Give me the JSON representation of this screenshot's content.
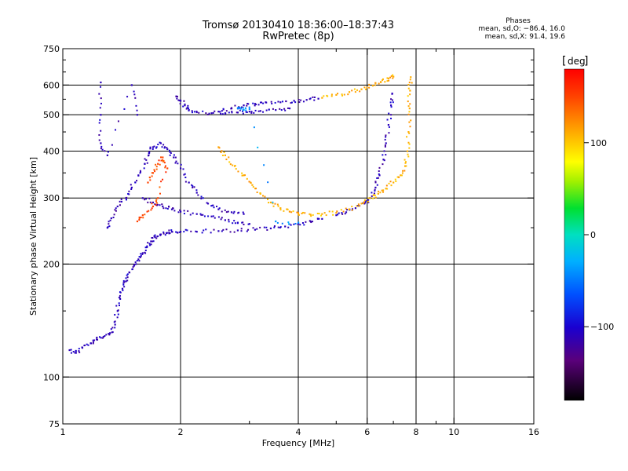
{
  "header": {
    "title": "Tromsø 20130410 18:36:00–18:37:43",
    "subtitle": "RwPretec (8p)"
  },
  "stats": {
    "title": "Phases",
    "line1": "mean, sd,O: −86.4, 16.0",
    "line2": "mean, sd,X:  91.4, 19.6"
  },
  "colorbar": {
    "label": "deg",
    "ticks": [
      {
        "value": 100,
        "label": "100"
      },
      {
        "value": 0,
        "label": "0"
      },
      {
        "value": -100,
        "label": "−100"
      }
    ],
    "range": [
      -180,
      180
    ]
  },
  "chart_data": {
    "type": "scatter",
    "xlabel": "Frequency [MHz]",
    "ylabel": "Stationary phase Virtual Height [km]",
    "xscale": "log",
    "yscale": "log",
    "xlim": [
      1,
      16
    ],
    "ylim": [
      75,
      750
    ],
    "xticks": [
      1,
      2,
      4,
      6,
      8,
      10,
      16
    ],
    "xtick_labels": [
      "1",
      "2",
      "4",
      "6",
      "8",
      "10",
      "16"
    ],
    "yticks": [
      75,
      100,
      200,
      300,
      400,
      500,
      600,
      750
    ],
    "ytick_labels": [
      "75",
      "100",
      "200",
      "300",
      "400",
      "500",
      "600",
      "750"
    ],
    "grid_x": [
      2,
      4,
      6,
      8,
      10
    ],
    "grid_y": [
      100,
      200,
      300,
      400,
      500,
      600
    ],
    "minor_xticks": [
      3,
      5,
      7,
      9
    ],
    "minor_yticks": [
      150,
      250,
      350,
      450,
      550,
      650,
      700
    ],
    "series": [
      {
        "color_value": -110,
        "traces": [
          {
            "points": [
              [
                1.04,
                118
              ],
              [
                1.08,
                116
              ],
              [
                1.12,
                120
              ],
              [
                1.18,
                123
              ],
              [
                1.22,
                126
              ],
              [
                1.27,
                128
              ],
              [
                1.32,
                131
              ],
              [
                1.36,
                138
              ],
              [
                1.38,
                150
              ],
              [
                1.4,
                162
              ],
              [
                1.42,
                172
              ],
              [
                1.45,
                180
              ],
              [
                1.48,
                190
              ],
              [
                1.52,
                198
              ],
              [
                1.56,
                206
              ],
              [
                1.6,
                214
              ],
              [
                1.64,
                222
              ],
              [
                1.68,
                230
              ],
              [
                1.72,
                236
              ],
              [
                1.78,
                240
              ],
              [
                1.84,
                242
              ],
              [
                1.9,
                244
              ],
              [
                2.0,
                244
              ],
              [
                2.2,
                244
              ],
              [
                2.5,
                245
              ],
              [
                2.8,
                246
              ],
              [
                3.1,
                247
              ],
              [
                3.4,
                249
              ],
              [
                3.7,
                252
              ],
              [
                4.0,
                256
              ],
              [
                4.3,
                260
              ],
              [
                4.6,
                264
              ]
            ]
          },
          {
            "points": [
              [
                1.3,
                250
              ],
              [
                1.33,
                265
              ],
              [
                1.38,
                285
              ],
              [
                1.45,
                300
              ],
              [
                1.5,
                320
              ],
              [
                1.56,
                345
              ],
              [
                1.62,
                370
              ],
              [
                1.66,
                395
              ],
              [
                1.7,
                410
              ],
              [
                1.78,
                420
              ],
              [
                1.85,
                405
              ],
              [
                1.92,
                385
              ],
              [
                2.0,
                360
              ],
              [
                2.1,
                330
              ],
              [
                2.2,
                310
              ],
              [
                2.35,
                290
              ],
              [
                2.5,
                280
              ],
              [
                2.7,
                275
              ],
              [
                2.9,
                272
              ]
            ]
          },
          {
            "points": [
              [
                1.6,
                300
              ],
              [
                1.7,
                292
              ],
              [
                1.8,
                285
              ],
              [
                1.9,
                280
              ],
              [
                2.0,
                276
              ],
              [
                2.2,
                272
              ],
              [
                2.4,
                268
              ],
              [
                2.6,
                262
              ],
              [
                2.8,
                258
              ],
              [
                3.0,
                256
              ]
            ]
          },
          {
            "points": [
              [
                1.95,
                560
              ],
              [
                2.0,
                545
              ],
              [
                2.05,
                530
              ],
              [
                2.1,
                515
              ],
              [
                2.2,
                508
              ],
              [
                2.4,
                505
              ],
              [
                2.6,
                505
              ],
              [
                2.8,
                507
              ],
              [
                3.0,
                510
              ],
              [
                3.2,
                512
              ],
              [
                3.5,
                515
              ],
              [
                3.8,
                520
              ]
            ]
          },
          {
            "points": [
              [
                2.5,
                510
              ],
              [
                2.7,
                520
              ],
              [
                2.9,
                530
              ],
              [
                3.1,
                535
              ],
              [
                3.3,
                540
              ],
              [
                3.6,
                540
              ],
              [
                3.9,
                545
              ],
              [
                4.2,
                548
              ],
              [
                4.5,
                552
              ]
            ]
          },
          {
            "points": [
              [
                5.0,
                270
              ],
              [
                5.3,
                275
              ],
              [
                5.6,
                282
              ],
              [
                5.9,
                290
              ],
              [
                6.1,
                300
              ],
              [
                6.3,
                320
              ],
              [
                6.45,
                345
              ],
              [
                6.6,
                380
              ],
              [
                6.7,
                420
              ],
              [
                6.8,
                470
              ],
              [
                6.9,
                530
              ],
              [
                6.95,
                570
              ]
            ]
          },
          {
            "points": [
              [
                1.25,
                610
              ],
              [
                1.25,
                500
              ],
              [
                1.25,
                420
              ],
              [
                1.3,
                390
              ],
              [
                1.5,
                600
              ],
              [
                1.55,
                500
              ]
            ]
          }
        ]
      },
      {
        "color_value": 110,
        "traces": [
          {
            "points": [
              [
                2.5,
                410
              ],
              [
                2.6,
                390
              ],
              [
                2.75,
                365
              ],
              [
                2.9,
                345
              ],
              [
                3.05,
                325
              ],
              [
                3.2,
                308
              ],
              [
                3.4,
                292
              ],
              [
                3.6,
                282
              ],
              [
                3.8,
                276
              ],
              [
                4.0,
                272
              ],
              [
                4.3,
                271
              ],
              [
                4.6,
                272
              ],
              [
                5.0,
                274
              ],
              [
                5.4,
                280
              ],
              [
                5.8,
                290
              ],
              [
                6.1,
                300
              ],
              [
                6.4,
                308
              ],
              [
                6.7,
                318
              ],
              [
                7.0,
                330
              ],
              [
                7.3,
                345
              ],
              [
                7.5,
                365
              ],
              [
                7.6,
                400
              ],
              [
                7.65,
                450
              ],
              [
                7.7,
                520
              ],
              [
                7.72,
                580
              ],
              [
                7.75,
                630
              ]
            ]
          },
          {
            "points": [
              [
                4.6,
                555
              ],
              [
                5.0,
                565
              ],
              [
                5.4,
                575
              ],
              [
                5.8,
                585
              ],
              [
                6.2,
                598
              ],
              [
                6.5,
                612
              ],
              [
                6.8,
                625
              ],
              [
                7.0,
                632
              ]
            ]
          }
        ]
      },
      {
        "color_value": 150,
        "traces": [
          {
            "points": [
              [
                1.65,
                330
              ],
              [
                1.7,
                350
              ],
              [
                1.75,
                370
              ],
              [
                1.8,
                385
              ],
              [
                1.85,
                360
              ],
              [
                1.75,
                300
              ],
              [
                1.7,
                285
              ],
              [
                1.6,
                270
              ],
              [
                1.55,
                260
              ]
            ]
          }
        ]
      },
      {
        "color_value": -40,
        "traces": [
          {
            "points": [
              [
                2.8,
                520
              ],
              [
                2.9,
                515
              ],
              [
                3.0,
                518
              ],
              [
                3.5,
                260
              ],
              [
                4.0,
                258
              ]
            ]
          }
        ]
      }
    ]
  }
}
